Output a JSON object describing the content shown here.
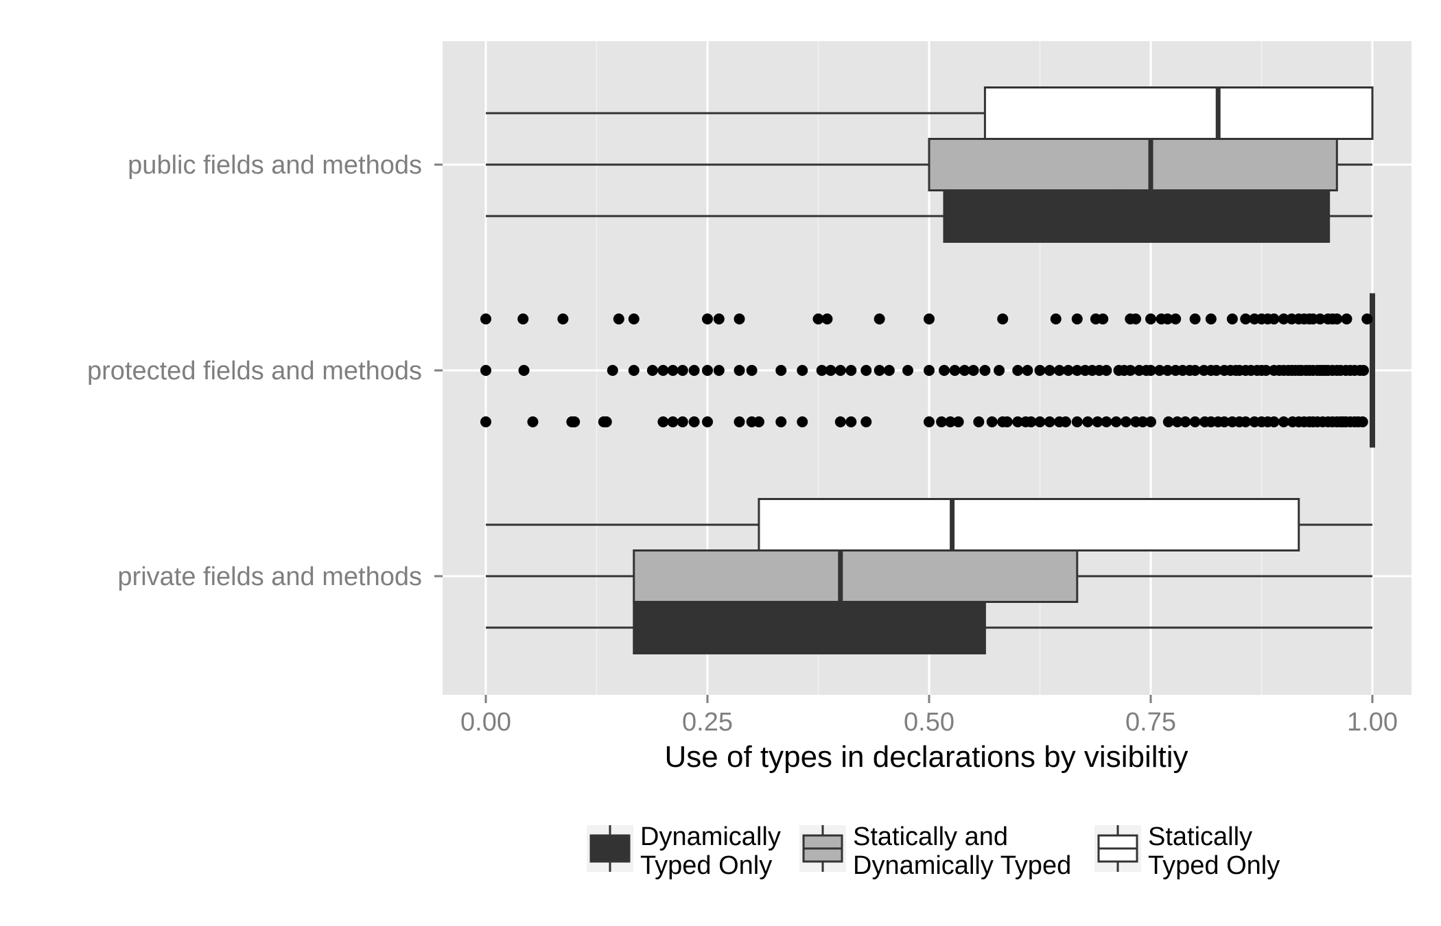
{
  "chart_data": {
    "type": "boxplot",
    "orientation": "horizontal",
    "title": "",
    "xlabel": "Use of types in declarations by visibiltiy",
    "ylabel": "",
    "xlim": [
      -0.1,
      2.1
    ],
    "x_ticks": [
      {
        "value": 0.0,
        "label": "0.00"
      },
      {
        "value": 0.25,
        "label": "0.25"
      },
      {
        "value": 0.5,
        "label": "0.50"
      },
      {
        "value": 0.75,
        "label": "0.75"
      },
      {
        "value": 1.0,
        "label": "1.00"
      }
    ],
    "x_scale": 1.0,
    "grid": true,
    "legend_position": "bottom",
    "categories": [
      "public fields and methods",
      "protected fields and methods",
      "private fields and methods"
    ],
    "series": [
      {
        "name": "Dynamically Typed Only",
        "fill": "#333333",
        "boxes": [
          {
            "category": "public fields and methods",
            "whisker_low": 0.0,
            "q1": 0.517,
            "median": 0.715,
            "q3": 0.951,
            "whisker_high": 1.0
          },
          {
            "category": "protected fields and methods",
            "whisker_low": 1.0,
            "q1": 1.0,
            "median": 1.0,
            "q3": 1.0,
            "whisker_high": 1.0,
            "outliers": [
              0.0,
              0.053,
              0.1,
              0.097,
              0.133,
              0.136,
              0.2,
              0.211,
              0.222,
              0.235,
              0.25,
              0.286,
              0.3,
              0.308,
              0.333,
              0.357,
              0.4,
              0.412,
              0.429,
              0.5,
              0.514,
              0.524,
              0.533,
              0.556,
              0.571,
              0.583,
              0.588,
              0.6,
              0.609,
              0.615,
              0.625,
              0.636,
              0.647,
              0.654,
              0.667,
              0.679,
              0.69,
              0.7,
              0.711,
              0.722,
              0.733,
              0.741,
              0.75,
              0.77,
              0.78,
              0.789,
              0.8,
              0.811,
              0.818,
              0.826,
              0.833,
              0.842,
              0.85,
              0.857,
              0.867,
              0.875,
              0.882,
              0.889,
              0.9,
              0.91,
              0.917,
              0.923,
              0.929,
              0.933,
              0.938,
              0.944,
              0.95,
              0.955,
              0.96,
              0.964,
              0.967,
              0.97,
              0.975,
              0.98,
              0.984,
              0.989
            ]
          },
          {
            "category": "private fields and methods",
            "whisker_low": 0.0,
            "q1": 0.167,
            "median": 0.37,
            "q3": 0.563,
            "whisker_high": 1.0
          }
        ]
      },
      {
        "name": "Statically and Dynamically Typed",
        "fill": "#b2b2b2",
        "boxes": [
          {
            "category": "public fields and methods",
            "whisker_low": 0.0,
            "q1": 0.5,
            "median": 0.75,
            "q3": 0.96,
            "whisker_high": 1.0
          },
          {
            "category": "protected fields and methods",
            "whisker_low": 1.0,
            "q1": 1.0,
            "median": 1.0,
            "q3": 1.0,
            "whisker_high": 1.0,
            "outliers": [
              0.0,
              0.043,
              0.143,
              0.167,
              0.188,
              0.2,
              0.211,
              0.222,
              0.235,
              0.25,
              0.263,
              0.286,
              0.3,
              0.333,
              0.357,
              0.379,
              0.389,
              0.4,
              0.412,
              0.429,
              0.444,
              0.455,
              0.476,
              0.5,
              0.517,
              0.529,
              0.54,
              0.55,
              0.563,
              0.579,
              0.6,
              0.611,
              0.625,
              0.636,
              0.647,
              0.657,
              0.667,
              0.676,
              0.684,
              0.692,
              0.7,
              0.714,
              0.72,
              0.727,
              0.737,
              0.745,
              0.75,
              0.76,
              0.769,
              0.778,
              0.786,
              0.794,
              0.8,
              0.81,
              0.818,
              0.824,
              0.833,
              0.84,
              0.846,
              0.85,
              0.857,
              0.863,
              0.87,
              0.875,
              0.88,
              0.889,
              0.895,
              0.9,
              0.905,
              0.909,
              0.913,
              0.917,
              0.92,
              0.925,
              0.929,
              0.933,
              0.938,
              0.941,
              0.944,
              0.947,
              0.95,
              0.955,
              0.96,
              0.964,
              0.97,
              0.975,
              0.98,
              0.986,
              0.99
            ]
          },
          {
            "category": "private fields and methods",
            "whisker_low": 0.0,
            "q1": 0.167,
            "median": 0.4,
            "q3": 0.667,
            "whisker_high": 1.0
          }
        ]
      },
      {
        "name": "Statically Typed Only",
        "fill": "#ffffff",
        "boxes": [
          {
            "category": "public fields and methods",
            "whisker_low": 0.0,
            "q1": 0.563,
            "median": 0.826,
            "q3": 1.0,
            "whisker_high": 1.0
          },
          {
            "category": "protected fields and methods",
            "whisker_low": 1.0,
            "q1": 1.0,
            "median": 1.0,
            "q3": 1.0,
            "whisker_high": 1.0,
            "outliers": [
              0.0,
              0.042,
              0.087,
              0.15,
              0.167,
              0.25,
              0.263,
              0.286,
              0.375,
              0.385,
              0.444,
              0.5,
              0.583,
              0.643,
              0.667,
              0.688,
              0.696,
              0.727,
              0.733,
              0.75,
              0.762,
              0.769,
              0.778,
              0.8,
              0.818,
              0.842,
              0.857,
              0.867,
              0.875,
              0.882,
              0.889,
              0.9,
              0.909,
              0.917,
              0.923,
              0.929,
              0.933,
              0.941,
              0.95,
              0.955,
              0.96,
              0.971,
              0.994
            ]
          },
          {
            "category": "private fields and methods",
            "whisker_low": 0.0,
            "q1": 0.308,
            "median": 0.526,
            "q3": 0.917,
            "whisker_high": 1.0
          }
        ]
      }
    ],
    "legend": [
      {
        "line1": "Dynamically",
        "line2": "Typed Only",
        "fill": "#333333"
      },
      {
        "line1": "Statically and",
        "line2": "Dynamically Typed",
        "fill": "#b2b2b2"
      },
      {
        "line1": "Statically",
        "line2": "Typed Only",
        "fill": "#ffffff"
      }
    ]
  }
}
